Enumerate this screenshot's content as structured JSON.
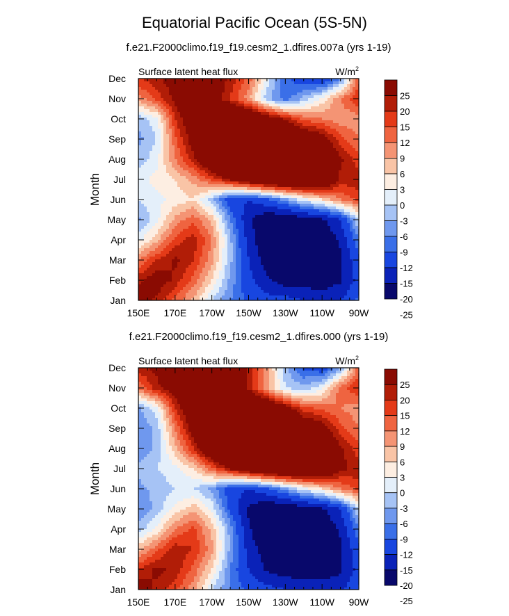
{
  "figure": {
    "title": "Equatorial Pacific Ocean (5S-5N)"
  },
  "colors": {
    "levels": [
      "#08086b",
      "#0a22b8",
      "#1846e0",
      "#3a6fe8",
      "#6f98ee",
      "#a6c3f5",
      "#e4effa",
      "#fdeee2",
      "#f9c4a6",
      "#f49474",
      "#ef6440",
      "#e43a18",
      "#b11d07",
      "#8a0b02"
    ]
  },
  "chart_data": [
    {
      "type": "heatmap",
      "name": "panel1",
      "title": "f.e21.F2000climo.f19_f19.cesm2_1.dfires.007a (yrs 1-19)",
      "left_label": "Surface latent heat flux",
      "units_label": "W/m",
      "units_sup": "2",
      "ylabel": "Month",
      "xlabel": "",
      "xticks": [
        "150E",
        "170E",
        "170W",
        "150W",
        "130W",
        "110W",
        "90W"
      ],
      "yticks": [
        "Jan",
        "Feb",
        "Mar",
        "Apr",
        "May",
        "Jun",
        "Jul",
        "Aug",
        "Sep",
        "Oct",
        "Nov",
        "Dec"
      ],
      "xlim": [
        150,
        270
      ],
      "colorbar_labels": [
        "25",
        "20",
        "15",
        "12",
        "9",
        "6",
        "3",
        "0",
        "-3",
        "-6",
        "-9",
        "-12",
        "-15",
        "-20",
        "-25"
      ],
      "colorbar_bounds": [
        -25,
        -20,
        -15,
        -12,
        -9,
        -6,
        -3,
        0,
        3,
        6,
        9,
        12,
        15,
        20,
        25
      ],
      "longitudes": [
        150,
        160,
        170,
        180,
        190,
        200,
        210,
        220,
        230,
        240,
        250,
        260,
        270
      ],
      "values": [
        [
          18,
          14,
          8,
          2,
          -6,
          -12,
          -16,
          -18,
          -18,
          -20,
          -22,
          -20,
          -14
        ],
        [
          14,
          18,
          14,
          8,
          0,
          -10,
          -18,
          -24,
          -28,
          -28,
          -28,
          -26,
          -18
        ],
        [
          6,
          12,
          16,
          12,
          4,
          -8,
          -20,
          -28,
          -30,
          -30,
          -30,
          -26,
          -16
        ],
        [
          -4,
          2,
          10,
          14,
          6,
          -8,
          -22,
          -30,
          -32,
          -32,
          -30,
          -24,
          -12
        ],
        [
          -10,
          -4,
          4,
          8,
          2,
          -12,
          -24,
          -30,
          -30,
          -28,
          -26,
          -20,
          -6
        ],
        [
          -6,
          -4,
          -2,
          0,
          -8,
          -18,
          -20,
          -16,
          -10,
          -4,
          0,
          6,
          10
        ],
        [
          -4,
          -2,
          0,
          4,
          10,
          16,
          22,
          26,
          28,
          28,
          26,
          14,
          14
        ],
        [
          -8,
          -4,
          6,
          14,
          24,
          30,
          32,
          32,
          30,
          28,
          24,
          16,
          10
        ],
        [
          -10,
          -6,
          8,
          18,
          28,
          34,
          34,
          32,
          28,
          22,
          18,
          10,
          6
        ],
        [
          -8,
          -4,
          12,
          20,
          26,
          28,
          26,
          20,
          14,
          8,
          6,
          4,
          4
        ],
        [
          4,
          10,
          16,
          22,
          18,
          12,
          4,
          -8,
          -14,
          -8,
          -2,
          6,
          12
        ],
        [
          12,
          14,
          18,
          22,
          20,
          14,
          8,
          -4,
          -14,
          -18,
          -20,
          -12,
          8
        ]
      ]
    },
    {
      "type": "heatmap",
      "name": "panel2",
      "title": "f.e21.F2000climo.f19_f19.cesm2_1.dfires.000 (yrs 1-19)",
      "left_label": "Surface latent heat flux",
      "units_label": "W/m",
      "units_sup": "2",
      "ylabel": "Month",
      "xlabel": "",
      "xticks": [
        "150E",
        "170E",
        "170W",
        "150W",
        "130W",
        "110W",
        "90W"
      ],
      "yticks": [
        "Jan",
        "Feb",
        "Mar",
        "Apr",
        "May",
        "Jun",
        "Jul",
        "Aug",
        "Sep",
        "Oct",
        "Nov",
        "Dec"
      ],
      "xlim": [
        150,
        270
      ],
      "colorbar_labels": [
        "25",
        "20",
        "15",
        "12",
        "9",
        "6",
        "3",
        "0",
        "-3",
        "-6",
        "-9",
        "-12",
        "-15",
        "-20",
        "-25"
      ],
      "colorbar_bounds": [
        -25,
        -20,
        -15,
        -12,
        -9,
        -6,
        -3,
        0,
        3,
        6,
        9,
        12,
        15,
        20,
        25
      ],
      "longitudes": [
        150,
        160,
        170,
        180,
        190,
        200,
        210,
        220,
        230,
        240,
        250,
        260,
        270
      ],
      "values": [
        [
          18,
          14,
          10,
          4,
          -6,
          -12,
          -16,
          -18,
          -20,
          -22,
          -22,
          -22,
          -14
        ],
        [
          12,
          16,
          14,
          8,
          0,
          -12,
          -20,
          -26,
          -28,
          -28,
          -28,
          -26,
          -18
        ],
        [
          2,
          8,
          14,
          12,
          4,
          -10,
          -22,
          -28,
          -30,
          -30,
          -30,
          -26,
          -16
        ],
        [
          -8,
          -2,
          6,
          10,
          2,
          -10,
          -24,
          -32,
          -32,
          -32,
          -30,
          -24,
          -12
        ],
        [
          -12,
          -8,
          -2,
          2,
          -4,
          -16,
          -26,
          -30,
          -30,
          -28,
          -26,
          -20,
          -6
        ],
        [
          -10,
          -8,
          -6,
          -6,
          -10,
          -18,
          -20,
          -16,
          -10,
          -4,
          0,
          6,
          10
        ],
        [
          -8,
          -6,
          -4,
          0,
          8,
          16,
          22,
          26,
          28,
          28,
          26,
          16,
          14
        ],
        [
          -12,
          -8,
          2,
          12,
          24,
          30,
          32,
          32,
          30,
          28,
          24,
          16,
          10
        ],
        [
          -12,
          -8,
          6,
          18,
          28,
          34,
          34,
          32,
          28,
          22,
          18,
          10,
          6
        ],
        [
          -10,
          -4,
          12,
          22,
          28,
          30,
          28,
          24,
          18,
          10,
          8,
          6,
          4
        ],
        [
          6,
          14,
          18,
          22,
          24,
          20,
          14,
          4,
          -6,
          -8,
          -4,
          8,
          12
        ],
        [
          14,
          16,
          20,
          24,
          24,
          20,
          14,
          4,
          -8,
          -16,
          -18,
          -10,
          8
        ]
      ]
    }
  ]
}
